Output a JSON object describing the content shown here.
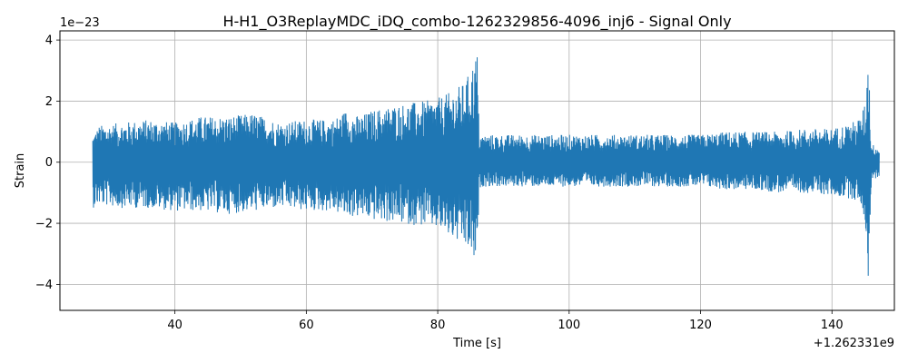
{
  "chart_data": {
    "type": "line",
    "title": "H-H1_O3ReplayMDC_iDQ_combo-1262329856-4096_inj6 - Signal Only",
    "xlabel": "Time [s]",
    "ylabel": "Strain",
    "x_offset_label": "+1.262331e9",
    "y_scale_label": "1e−23",
    "xlim": [
      22.5,
      149.5
    ],
    "ylim": [
      -4.85,
      4.3
    ],
    "xticks": [
      40,
      60,
      80,
      100,
      120,
      140
    ],
    "xtick_labels": [
      "40",
      "60",
      "80",
      "100",
      "120",
      "140"
    ],
    "yticks": [
      -4,
      -2,
      0,
      2,
      4
    ],
    "ytick_labels": [
      "−4",
      "−2",
      "0",
      "2",
      "4"
    ],
    "grid": true,
    "colors": {
      "line": "#1f77b4",
      "grid": "#b0b0b0",
      "axes": "#000000"
    },
    "series": [
      {
        "values_unit": "1e-23 strain",
        "envelope": {
          "x": [
            27.5,
            28.5,
            32,
            36,
            40,
            44,
            48,
            52,
            56,
            60,
            64,
            66,
            68,
            70,
            74,
            78,
            80,
            82,
            84,
            85,
            86,
            86.3,
            86.6,
            88,
            92,
            96,
            100,
            104,
            108,
            112,
            116,
            120,
            124,
            128,
            132,
            136,
            140,
            143,
            144.5,
            145.2,
            145.5,
            146,
            147.2
          ],
          "upper": [
            0.9,
            1.2,
            1.3,
            1.4,
            1.3,
            1.5,
            1.5,
            1.6,
            1.3,
            1.4,
            1.4,
            1.7,
            1.5,
            1.7,
            1.9,
            2.0,
            2.1,
            2.3,
            2.6,
            3.0,
            3.7,
            1.0,
            0.9,
            0.9,
            0.9,
            0.9,
            0.9,
            0.9,
            0.9,
            0.9,
            0.9,
            0.9,
            1.0,
            1.0,
            1.0,
            1.1,
            1.1,
            1.3,
            1.5,
            2.2,
            4.0,
            0.6,
            0.5
          ],
          "lower": [
            -1.5,
            -1.4,
            -1.5,
            -1.5,
            -1.6,
            -1.6,
            -1.7,
            -1.6,
            -1.5,
            -1.6,
            -1.6,
            -1.8,
            -1.8,
            -1.9,
            -2.0,
            -2.1,
            -2.2,
            -2.5,
            -2.8,
            -3.0,
            -3.6,
            -0.9,
            -0.8,
            -0.8,
            -0.8,
            -0.8,
            -0.8,
            -0.8,
            -0.8,
            -0.8,
            -0.8,
            -0.8,
            -0.9,
            -0.9,
            -1.0,
            -1.0,
            -1.1,
            -1.2,
            -1.4,
            -2.3,
            -4.4,
            -0.6,
            -0.5
          ]
        }
      }
    ]
  }
}
